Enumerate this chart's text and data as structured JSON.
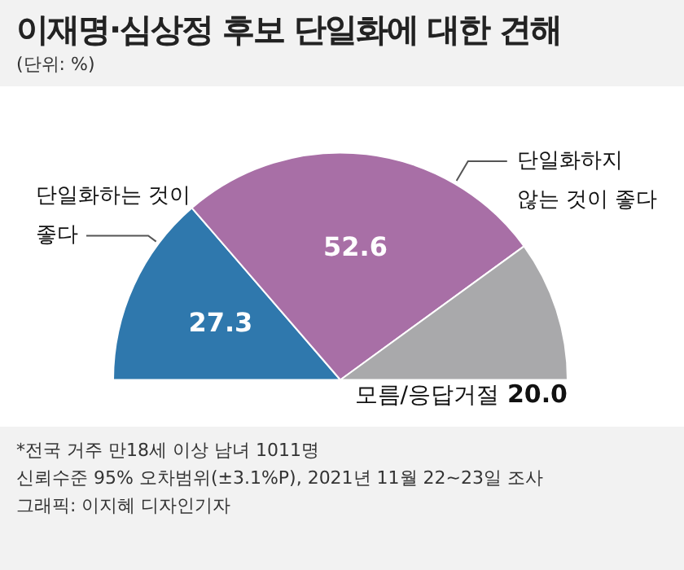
{
  "chart_data": {
    "type": "pie",
    "title": "이재명·심상정 후보 단일화에 대한 견해",
    "subtitle": "(단위: %)",
    "categories": [
      "단일화하는 것이\n좋다",
      "단일화하지\n않는 것이 좋다",
      "모름/응답거절"
    ],
    "values": [
      27.3,
      52.6,
      20.0
    ],
    "value_labels": [
      "27.3",
      "52.6",
      "20.0"
    ],
    "colors": [
      "#2f78ad",
      "#a86fa6",
      "#a9a9ab"
    ],
    "legend": false,
    "annotations": [
      "*전국 거주 만18세 이상 남녀 1011명",
      "신뢰수준 95% 오차범위(±3.1%P), 2021년 11월 22~23일 조사",
      "그래픽: 이지혜 디자인기자"
    ]
  }
}
